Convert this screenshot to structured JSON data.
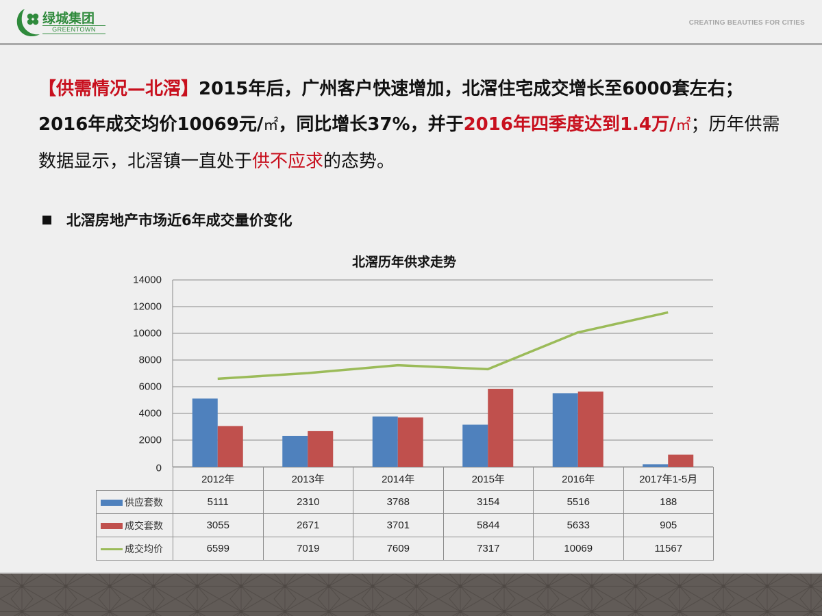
{
  "header": {
    "logo_cn": "绿城集团",
    "logo_en": "GREENTOWN",
    "tagline": "CREATING BEAUTIES FOR CITIES",
    "brand_color": "#2f8a3c"
  },
  "intro": {
    "p1_red": "【供需情况—北滘】",
    "p1_a": "2015年后，广州客户快速增加，北滘住宅成交增长至6000套左右；2016年成交均价10069元/",
    "unit1": "㎡",
    "p1_b": "，同比增长37%，并于",
    "p1_red2": "2016年四季度达到1.4万/",
    "unit2": "㎡",
    "p1_c": "；历年供需数据显示，北滘镇一直处于",
    "p1_red3": "供不应求",
    "p1_d": "的态势。",
    "accent_color": "#c8101e"
  },
  "section": {
    "title": "北滘房地产市场近6年成交量价变化"
  },
  "chart_data": {
    "type": "bar",
    "title": "北滘历年供求走势",
    "xlabel": "",
    "ylabel": "",
    "ylim": [
      0,
      14000
    ],
    "yticks": [
      0,
      2000,
      4000,
      6000,
      8000,
      10000,
      12000,
      14000
    ],
    "grid": true,
    "legend_position": "data-table",
    "categories": [
      "2012年",
      "2013年",
      "2014年",
      "2015年",
      "2016年",
      "2017年1-5月"
    ],
    "series": [
      {
        "name": "供应套数",
        "type": "bar",
        "color": "#4f81bd",
        "values": [
          5111,
          2310,
          3768,
          3154,
          5516,
          188
        ]
      },
      {
        "name": "成交套数",
        "type": "bar",
        "color": "#c0504d",
        "values": [
          3055,
          2671,
          3701,
          5844,
          5633,
          905
        ]
      },
      {
        "name": "成交均价",
        "type": "line",
        "color": "#9bbb59",
        "values": [
          6599,
          7019,
          7609,
          7317,
          10069,
          11567
        ]
      }
    ]
  }
}
